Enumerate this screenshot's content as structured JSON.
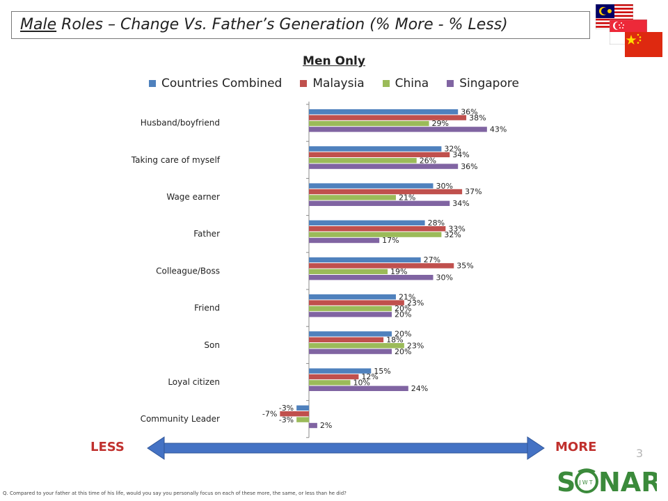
{
  "header": {
    "title_underlined": "Male",
    "title_rest": " Roles – Change Vs. Father’s Generation (% More - % Less)"
  },
  "chart_data": {
    "type": "bar",
    "orientation": "horizontal",
    "title": "Men Only",
    "categories": [
      "Husband/boyfriend",
      "Taking care of myself",
      "Wage earner",
      "Father",
      "Colleague/Boss",
      "Friend",
      "Son",
      "Loyal citizen",
      "Community Leader"
    ],
    "series": [
      {
        "name": "Countries Combined",
        "color": "#4f81bd",
        "values": [
          36,
          32,
          30,
          28,
          27,
          21,
          20,
          15,
          -3
        ]
      },
      {
        "name": "Malaysia",
        "color": "#c0504d",
        "values": [
          38,
          34,
          37,
          33,
          35,
          23,
          18,
          12,
          -7
        ]
      },
      {
        "name": "China",
        "color": "#9bbb59",
        "values": [
          29,
          26,
          21,
          32,
          19,
          20,
          23,
          10,
          -3
        ]
      },
      {
        "name": "Singapore",
        "color": "#8064a2",
        "values": [
          43,
          36,
          34,
          17,
          30,
          20,
          20,
          24,
          2
        ]
      }
    ],
    "value_suffix": "%",
    "legend_position": "top",
    "grid": false
  },
  "scale": {
    "less_label": "LESS",
    "more_label": "MORE",
    "arrow_color": "#4472c4"
  },
  "page_number": "3",
  "footnote": "Q. Compared to your father at this time of his life, would you say you personally focus on each of these more, the same, or less than he did?",
  "logo": {
    "small": "JWT",
    "main": "SONAR"
  },
  "flags": [
    "malaysia-flag",
    "singapore-flag",
    "china-flag"
  ]
}
